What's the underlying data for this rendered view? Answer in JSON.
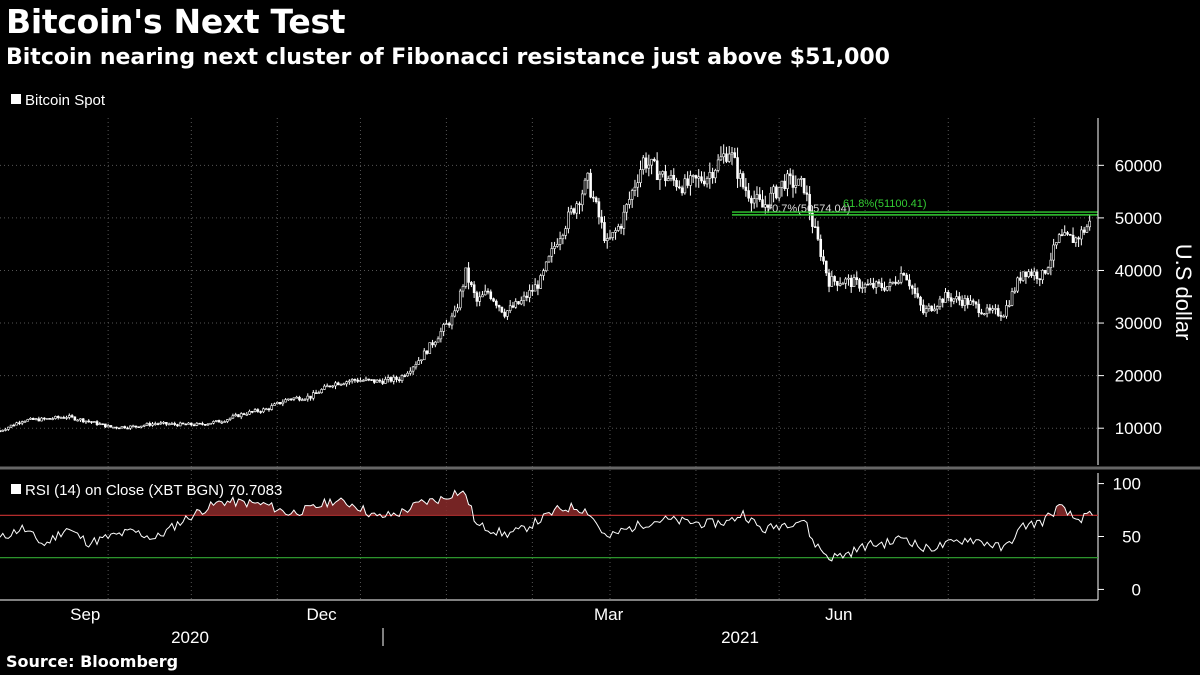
{
  "header": {
    "title": "Bitcoin's Next Test",
    "subtitle": "Bitcoin nearing next cluster of Fibonacci resistance just above $51,000"
  },
  "footer": {
    "source": "Source: Bloomberg"
  },
  "colors": {
    "background": "#000000",
    "price_line": "#ffffff",
    "fib_line": "#33cc33",
    "rsi_overbought": "#cc3333",
    "rsi_oversold": "#33aa33",
    "grid": "#555555"
  },
  "chart_data": [
    {
      "type": "candlestick",
      "legend": "Bitcoin Spot",
      "ylabel": "U.S dollar",
      "ylim": [
        3000,
        69000
      ],
      "yticks": [
        10000,
        20000,
        30000,
        40000,
        50000,
        60000
      ],
      "xlim": [
        "2020-07-24",
        "2021-08-24"
      ],
      "x_month_labels": [
        {
          "date": "2020-09-01",
          "label": "Sep"
        },
        {
          "date": "2020-12-01",
          "label": "Dec"
        },
        {
          "date": "2021-03-01",
          "label": "Mar"
        },
        {
          "date": "2021-06-01",
          "label": "Jun"
        }
      ],
      "x_year_labels": [
        {
          "date": "2020-10-15",
          "label": "2020"
        },
        {
          "date": "2021-04-15",
          "label": "2021"
        }
      ],
      "annotations": [
        {
          "label": "70.7%(50574.04)",
          "value": 50574.04,
          "start": "2021-04-14",
          "end": "2021-08-24"
        },
        {
          "label": "61.8%(51100.41)",
          "value": 51100.41,
          "start": "2021-04-14",
          "end": "2021-08-24"
        }
      ],
      "grid": true,
      "series": [
        {
          "x": [
            "2020-07-24",
            "2020-08-01",
            "2020-08-09",
            "2020-08-17",
            "2020-08-25",
            "2020-09-02",
            "2020-09-10",
            "2020-09-18",
            "2020-09-26",
            "2020-10-04",
            "2020-10-12",
            "2020-10-20",
            "2020-10-28",
            "2020-11-05",
            "2020-11-13",
            "2020-11-21",
            "2020-11-29",
            "2020-12-07",
            "2020-12-15",
            "2020-12-23",
            "2020-12-31",
            "2021-01-04",
            "2021-01-08",
            "2021-01-12",
            "2021-01-16",
            "2021-01-22",
            "2021-01-28",
            "2021-02-04",
            "2021-02-10",
            "2021-02-16",
            "2021-02-21",
            "2021-02-28",
            "2021-03-05",
            "2021-03-13",
            "2021-03-20",
            "2021-03-28",
            "2021-04-05",
            "2021-04-13",
            "2021-04-18",
            "2021-04-25",
            "2021-05-03",
            "2021-05-10",
            "2021-05-13",
            "2021-05-19",
            "2021-05-25",
            "2021-06-02",
            "2021-06-10",
            "2021-06-15",
            "2021-06-22",
            "2021-06-30",
            "2021-07-08",
            "2021-07-15",
            "2021-07-21",
            "2021-07-28",
            "2021-08-04",
            "2021-08-10",
            "2021-08-16",
            "2021-08-22"
          ],
          "y": [
            9500,
            11500,
            11700,
            12200,
            11300,
            10200,
            10300,
            10900,
            10700,
            10700,
            11400,
            12800,
            13600,
            15600,
            16000,
            18500,
            19200,
            18900,
            19400,
            23500,
            29000,
            31500,
            39500,
            34000,
            36000,
            32000,
            34000,
            38000,
            46000,
            52000,
            57000,
            45000,
            49000,
            61000,
            58000,
            56000,
            58000,
            63000,
            56000,
            52000,
            57000,
            56000,
            49000,
            38000,
            38000,
            37000,
            37000,
            40000,
            32000,
            35000,
            34000,
            32000,
            32000,
            40000,
            39000,
            46000,
            46000,
            49500
          ]
        }
      ]
    },
    {
      "type": "line",
      "legend": "RSI (14)  on Close (XBT BGN) 70.7083",
      "ylim": [
        -10,
        110
      ],
      "yticks": [
        0,
        50,
        100
      ],
      "reference_lines": [
        70,
        30
      ],
      "grid": true,
      "series": [
        {
          "x": [
            "2020-07-24",
            "2020-08-01",
            "2020-08-09",
            "2020-08-17",
            "2020-08-25",
            "2020-09-02",
            "2020-09-10",
            "2020-09-18",
            "2020-09-26",
            "2020-10-04",
            "2020-10-12",
            "2020-10-20",
            "2020-10-28",
            "2020-11-05",
            "2020-11-13",
            "2020-11-21",
            "2020-11-29",
            "2020-12-07",
            "2020-12-15",
            "2020-12-23",
            "2020-12-31",
            "2021-01-04",
            "2021-01-08",
            "2021-01-12",
            "2021-01-16",
            "2021-01-22",
            "2021-01-28",
            "2021-02-04",
            "2021-02-10",
            "2021-02-16",
            "2021-02-21",
            "2021-02-28",
            "2021-03-05",
            "2021-03-13",
            "2021-03-20",
            "2021-03-28",
            "2021-04-05",
            "2021-04-13",
            "2021-04-18",
            "2021-04-25",
            "2021-05-03",
            "2021-05-10",
            "2021-05-13",
            "2021-05-19",
            "2021-05-25",
            "2021-06-02",
            "2021-06-10",
            "2021-06-15",
            "2021-06-22",
            "2021-06-30",
            "2021-07-08",
            "2021-07-15",
            "2021-07-21",
            "2021-07-28",
            "2021-08-04",
            "2021-08-10",
            "2021-08-16",
            "2021-08-22"
          ],
          "y": [
            48,
            58,
            42,
            58,
            44,
            50,
            55,
            48,
            62,
            74,
            83,
            82,
            80,
            72,
            76,
            84,
            80,
            68,
            72,
            82,
            86,
            92,
            90,
            60,
            58,
            52,
            56,
            66,
            75,
            78,
            74,
            48,
            55,
            62,
            66,
            64,
            62,
            64,
            72,
            56,
            62,
            66,
            46,
            30,
            33,
            42,
            44,
            50,
            38,
            42,
            48,
            44,
            38,
            60,
            64,
            78,
            66,
            70
          ]
        }
      ]
    }
  ]
}
